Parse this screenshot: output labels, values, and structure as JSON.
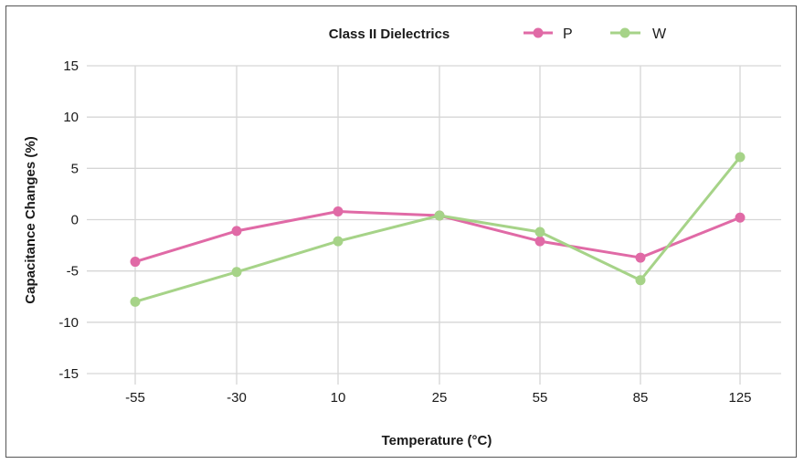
{
  "chart_data": {
    "type": "line",
    "title": "Class II Dielectrics",
    "xlabel": "Temperature (°C)",
    "ylabel": "Capacitance Changes (%)",
    "categories": [
      "-55",
      "-30",
      "10",
      "25",
      "55",
      "85",
      "125"
    ],
    "ylim": [
      -15,
      15
    ],
    "yticks": [
      15,
      10,
      5,
      0,
      -5,
      -10,
      -15
    ],
    "grid": true,
    "legend_position": "top",
    "series": [
      {
        "name": "P",
        "color": "#e06aa6",
        "values": [
          -4.1,
          -1.1,
          0.8,
          0.4,
          -2.1,
          -3.7,
          0.2
        ]
      },
      {
        "name": "W",
        "color": "#a6d388",
        "values": [
          -8.0,
          -5.1,
          -2.1,
          0.4,
          -1.2,
          -5.9,
          6.1
        ]
      }
    ]
  }
}
